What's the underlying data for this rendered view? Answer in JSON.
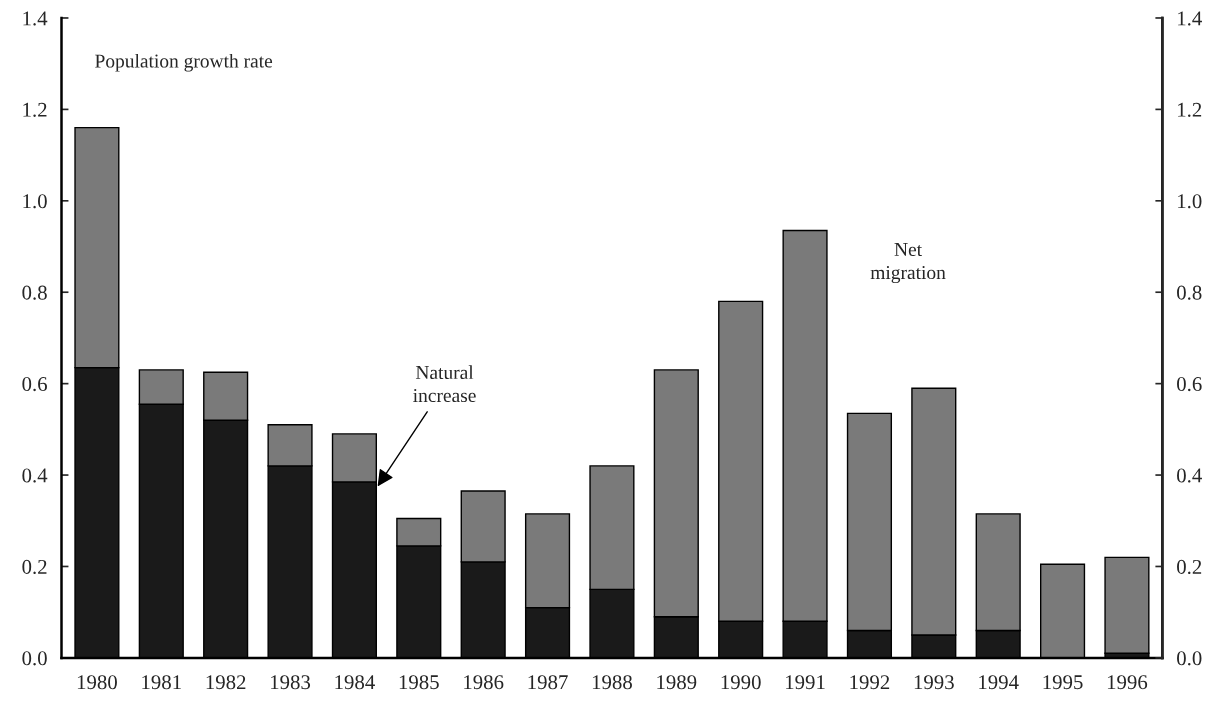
{
  "chart_data": {
    "type": "bar",
    "stacked": true,
    "categories": [
      "1980",
      "1981",
      "1982",
      "1983",
      "1984",
      "1985",
      "1986",
      "1987",
      "1988",
      "1989",
      "1990",
      "1991",
      "1992",
      "1993",
      "1994",
      "1995",
      "1996"
    ],
    "series": [
      {
        "name": "Natural increase",
        "color": "#1a1a1a",
        "values": [
          0.635,
          0.555,
          0.52,
          0.42,
          0.385,
          0.245,
          0.21,
          0.11,
          0.15,
          0.09,
          0.08,
          0.08,
          0.06,
          0.05,
          0.06,
          null,
          0.01
        ]
      },
      {
        "name": "Net migration",
        "color": "#7a7a7a",
        "values": [
          0.525,
          0.075,
          0.105,
          0.09,
          0.105,
          0.06,
          0.155,
          0.205,
          0.27,
          0.54,
          0.7,
          0.855,
          0.475,
          0.54,
          0.255,
          0.205,
          0.21
        ]
      }
    ],
    "ylim": [
      0,
      1.4
    ],
    "yticks": [
      {
        "value": 0,
        "label": "0.0"
      },
      {
        "value": 0.2,
        "label": "0.2"
      },
      {
        "value": 0.4,
        "label": "0.4"
      },
      {
        "value": 0.6,
        "label": "0.6"
      },
      {
        "value": 0.8,
        "label": "0.8"
      },
      {
        "value": 1.0,
        "label": "1.0"
      },
      {
        "value": 1.2,
        "label": "1.2"
      },
      {
        "value": 1.4,
        "label": "1.4"
      }
    ],
    "y2lim": [
      0,
      1.4
    ],
    "y2ticks": [
      {
        "value": 0,
        "label": "0.0"
      },
      {
        "value": 0.2,
        "label": "0.2"
      },
      {
        "value": 0.4,
        "label": "0.4"
      },
      {
        "value": 0.6,
        "label": "0.6"
      },
      {
        "value": 0.8,
        "label": "0.8"
      },
      {
        "value": 1.0,
        "label": "1.0"
      },
      {
        "value": 1.2,
        "label": "1.2"
      },
      {
        "value": 1.4,
        "label": "1.4"
      }
    ],
    "annotations": [
      "Population growth rate"
    ],
    "grid": false,
    "legend": false
  }
}
